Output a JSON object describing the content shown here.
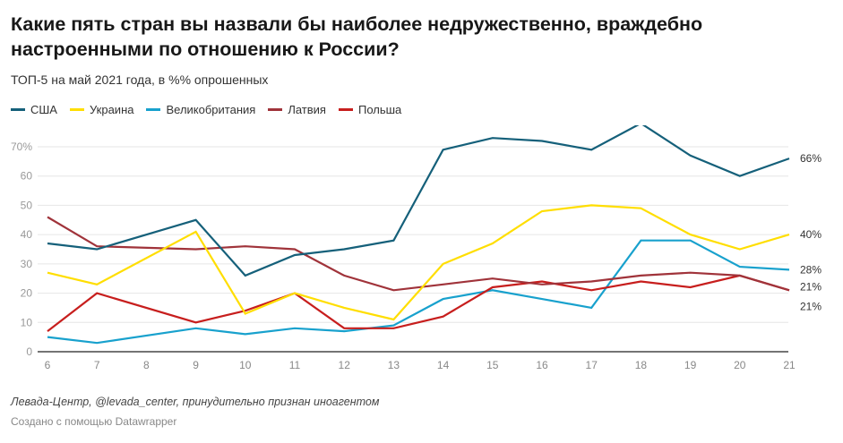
{
  "header": {
    "title": "Какие пять стран вы назвали бы наиболее недружественно, враждебно настроенными по отношению к России?",
    "subtitle": "ТОП-5 на май 2021 года, в %% опрошенных"
  },
  "footer": {
    "source": "Левада-Центр, @levada_center, принудительно признан иноагентом",
    "credit": "Создано с помощью Datawrapper"
  },
  "chart_data": {
    "type": "line",
    "title": "Какие пять стран вы назвали бы наиболее недружественно, враждебно настроенными по отношению к России?",
    "subtitle": "ТОП-5 на май 2021 года, в %% опрошенных",
    "xlabel": "",
    "ylabel": "",
    "x": [
      6,
      7,
      8,
      9,
      10,
      11,
      12,
      13,
      14,
      15,
      16,
      17,
      18,
      19,
      20,
      21
    ],
    "x_tick_labels": [
      "6",
      "7",
      "8",
      "9",
      "10",
      "11",
      "12",
      "13",
      "14",
      "15",
      "16",
      "17",
      "18",
      "19",
      "20",
      "21"
    ],
    "y_tick_labels": [
      "0",
      "10",
      "20",
      "30",
      "40",
      "50",
      "60",
      "70%"
    ],
    "y_ticks": [
      0,
      10,
      20,
      30,
      40,
      50,
      60,
      70
    ],
    "ylim": [
      0,
      70
    ],
    "grid": true,
    "legend_position": "top-left",
    "series": [
      {
        "name": "США",
        "color": "#15607a",
        "end_label": "66%",
        "values": [
          37,
          35,
          null,
          45,
          26,
          33,
          35,
          38,
          69,
          73,
          72,
          69,
          78,
          67,
          60,
          66
        ]
      },
      {
        "name": "Украина",
        "color": "#ffde00",
        "end_label": "40%",
        "values": [
          27,
          23,
          null,
          41,
          13,
          20,
          15,
          11,
          30,
          37,
          48,
          50,
          49,
          40,
          35,
          40
        ]
      },
      {
        "name": "Великобритания",
        "color": "#18a1cd",
        "end_label": "28%",
        "values": [
          5,
          3,
          null,
          8,
          6,
          8,
          7,
          9,
          18,
          21,
          18,
          15,
          38,
          38,
          29,
          28
        ]
      },
      {
        "name": "Латвия",
        "color": "#a0333a",
        "end_label": "21%",
        "values": [
          46,
          36,
          null,
          35,
          36,
          35,
          26,
          21,
          23,
          25,
          23,
          24,
          26,
          27,
          26,
          21
        ]
      },
      {
        "name": "Польша",
        "color": "#c71e1d",
        "end_label": "21%",
        "values": [
          7,
          20,
          null,
          10,
          14,
          20,
          8,
          8,
          12,
          22,
          24,
          21,
          24,
          22,
          26,
          21
        ]
      }
    ]
  }
}
